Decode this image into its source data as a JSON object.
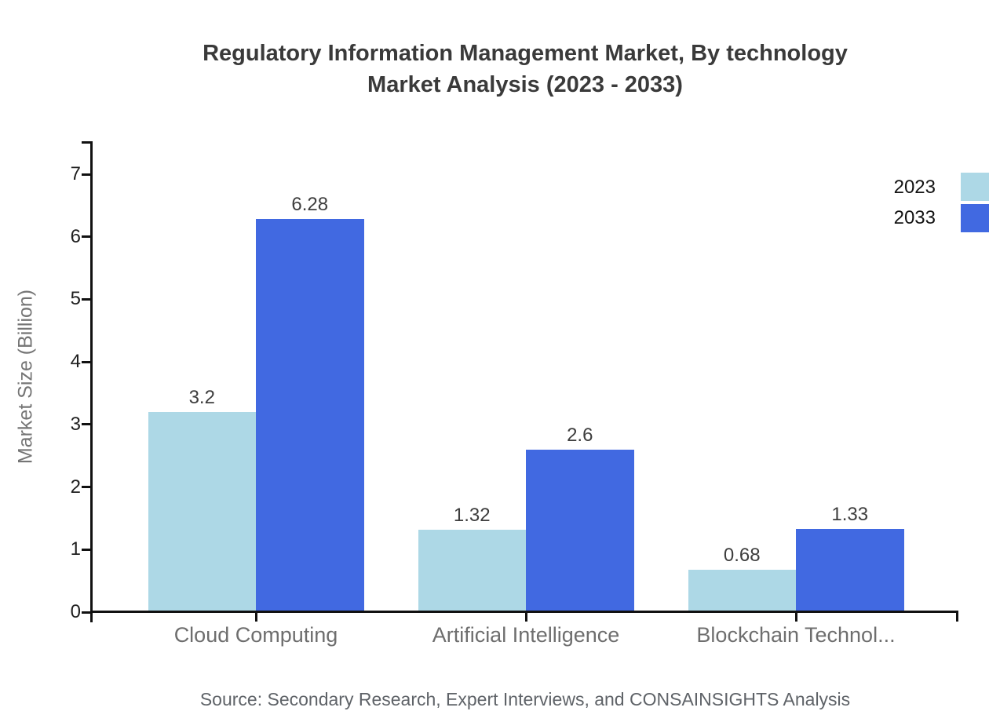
{
  "title": {
    "line1": "Regulatory Information Management Market, By technology",
    "line2": "Market Analysis (2023 - 2033)"
  },
  "source_note": "Source: Secondary Research, Expert Interviews, and CONSAINSIGHTS Analysis",
  "colors": {
    "series_2023": "#ADD8E6",
    "series_2033": "#4169E1",
    "axis": "#111111",
    "title_text": "#3a3a3a",
    "category_text": "#6e6e6e",
    "background": "#ffffff"
  },
  "chart_data": {
    "type": "bar",
    "title": "Regulatory Information Management Market, By technology Market Analysis (2023 - 2033)",
    "categories": [
      "Cloud Computing",
      "Artificial Intelligence",
      "Blockchain Technol..."
    ],
    "series": [
      {
        "name": "2023",
        "color": "#ADD8E6",
        "values": [
          3.2,
          1.32,
          0.68
        ]
      },
      {
        "name": "2033",
        "color": "#4169E1",
        "values": [
          6.28,
          2.6,
          1.33
        ]
      }
    ],
    "value_labels": [
      [
        "3.2",
        "1.32",
        "0.68"
      ],
      [
        "6.28",
        "2.6",
        "1.33"
      ]
    ],
    "xlabel": "",
    "ylabel": "Market Size (Billion)",
    "y_ticks": [
      0,
      1,
      2,
      3,
      4,
      5,
      6,
      7
    ],
    "ylim": [
      0,
      7.5
    ],
    "grid": false,
    "legend_position": "top-right",
    "bar_orientation": "vertical"
  }
}
